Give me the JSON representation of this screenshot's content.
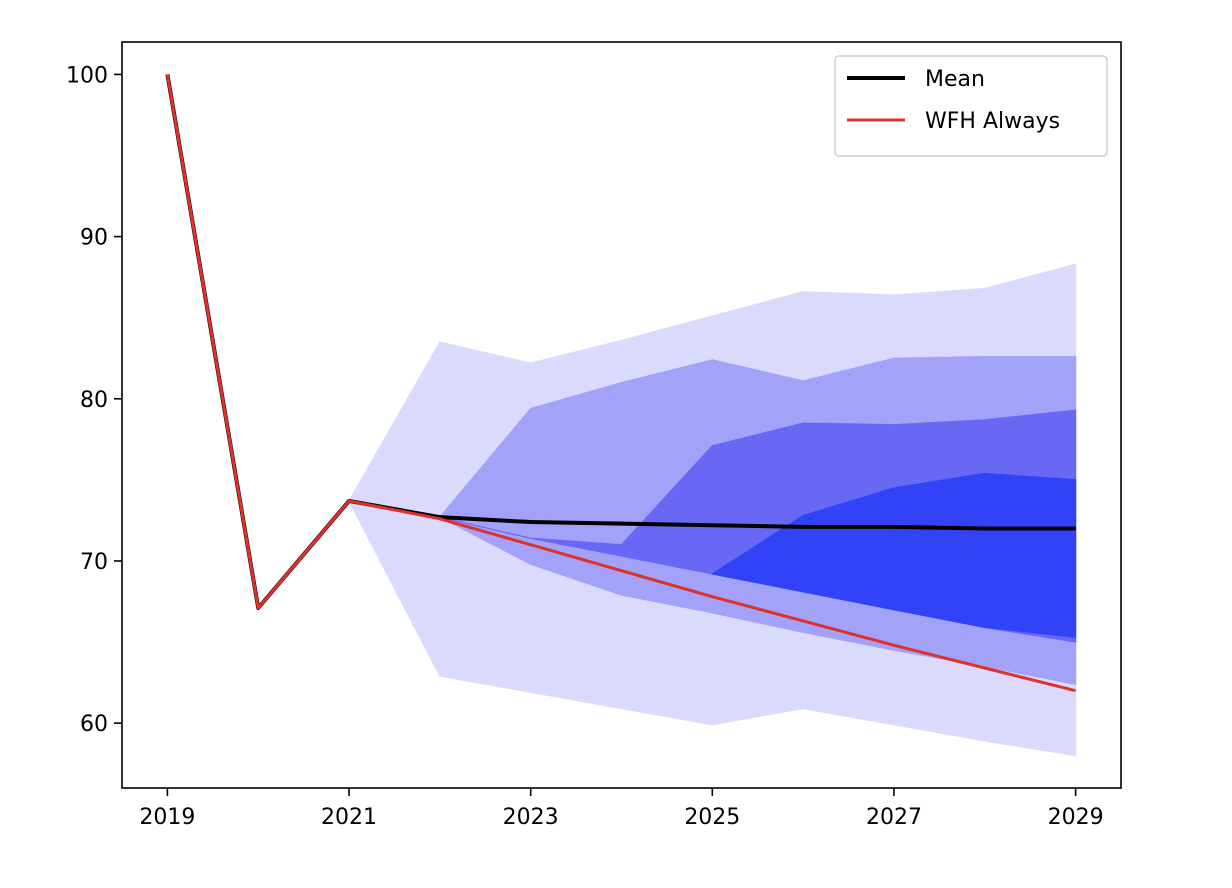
{
  "chart_data": {
    "type": "line",
    "title": "",
    "xlabel": "",
    "ylabel": "",
    "xlim": [
      2018.5,
      2029.5
    ],
    "ylim": [
      56,
      102
    ],
    "grid": false,
    "legend_placement": "top-right",
    "xticks": [
      2019,
      2021,
      2023,
      2025,
      2027,
      2029
    ],
    "yticks": [
      60,
      70,
      80,
      90,
      100
    ],
    "x": [
      2019,
      2020,
      2021,
      2022,
      2023,
      2024,
      2025,
      2026,
      2027,
      2028,
      2029
    ],
    "series": [
      {
        "name": "Mean",
        "color": "#000000",
        "values": [
          100,
          67.1,
          73.7,
          72.7,
          72.4,
          72.3,
          72.2,
          72.1,
          72.1,
          72.0,
          72.0
        ]
      },
      {
        "name": "WFH Always",
        "color": "#e0302a",
        "values": [
          100,
          67.1,
          73.7,
          72.6,
          71.0,
          69.4,
          67.8,
          66.3,
          64.8,
          63.4,
          62.0
        ]
      }
    ],
    "bands": [
      {
        "x_start": 2021,
        "upper": [
          73.7,
          83.5,
          82.2,
          83.6,
          85.1,
          86.6,
          86.4,
          86.8,
          88.3
        ],
        "lower": [
          73.7,
          62.9,
          61.9,
          60.9,
          59.9,
          60.9,
          59.9,
          58.9,
          58.0
        ],
        "fill": "#dadafc"
      },
      {
        "x_start": 2022,
        "upper": [
          72.7,
          79.4,
          81.0,
          82.4,
          81.1,
          82.5,
          82.6,
          82.6
        ],
        "lower": [
          72.7,
          69.8,
          67.9,
          66.8,
          65.6,
          64.5,
          63.5,
          62.4
        ],
        "fill": "#a2a2f8"
      },
      {
        "x_start": 2022,
        "upper": [
          72.7,
          71.4,
          71.0,
          77.1,
          78.5,
          78.4,
          78.7,
          79.3
        ],
        "lower": [
          72.7,
          71.4,
          70.3,
          69.2,
          68.1,
          67.0,
          65.9,
          65.0
        ],
        "fill": "#6868f5"
      },
      {
        "x_start": 2025,
        "upper": [
          69.2,
          72.8,
          74.5,
          75.4,
          75.0
        ],
        "lower": [
          69.2,
          68.1,
          67.0,
          65.9,
          65.3
        ],
        "fill": "#3243f7"
      }
    ]
  }
}
